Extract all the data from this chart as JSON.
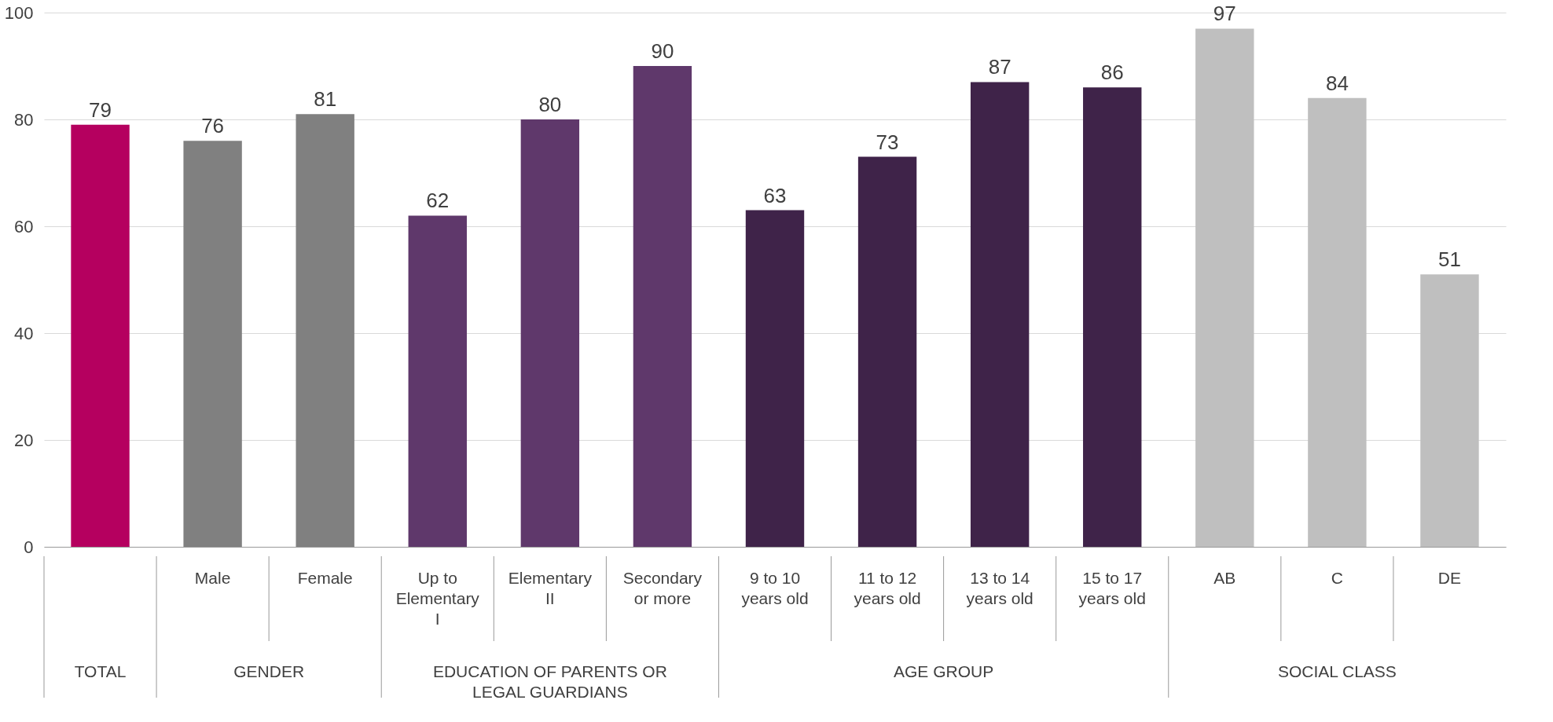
{
  "chart_data": {
    "type": "bar",
    "categories": [
      null,
      "Male",
      "Female",
      "Up to Elementary I",
      "Elementary II",
      "Secondary or more",
      "9 to 10 years old",
      "11 to 12 years old",
      "13 to 14 years old",
      "15 to 17 years old",
      "AB",
      "C",
      "DE"
    ],
    "values": [
      79,
      76,
      81,
      62,
      80,
      90,
      63,
      73,
      87,
      86,
      97,
      84,
      51
    ],
    "colors": [
      "#b5005f",
      "#808080",
      "#808080",
      "#5f386b",
      "#5f386b",
      "#5f386b",
      "#3f2349",
      "#3f2349",
      "#3f2349",
      "#3f2349",
      "#bfbfbf",
      "#bfbfbf",
      "#bfbfbf"
    ],
    "ylim": [
      0,
      100
    ],
    "yticks": [
      0,
      20,
      40,
      60,
      80,
      100
    ],
    "grid": "y",
    "data_labels": true,
    "annotations": [
      "TOTAL",
      "GENDER",
      "EDUCATION OF PARENTS OR LEGAL GUARDIANS",
      "AGE GROUP",
      "SOCIAL CLASS"
    ]
  }
}
